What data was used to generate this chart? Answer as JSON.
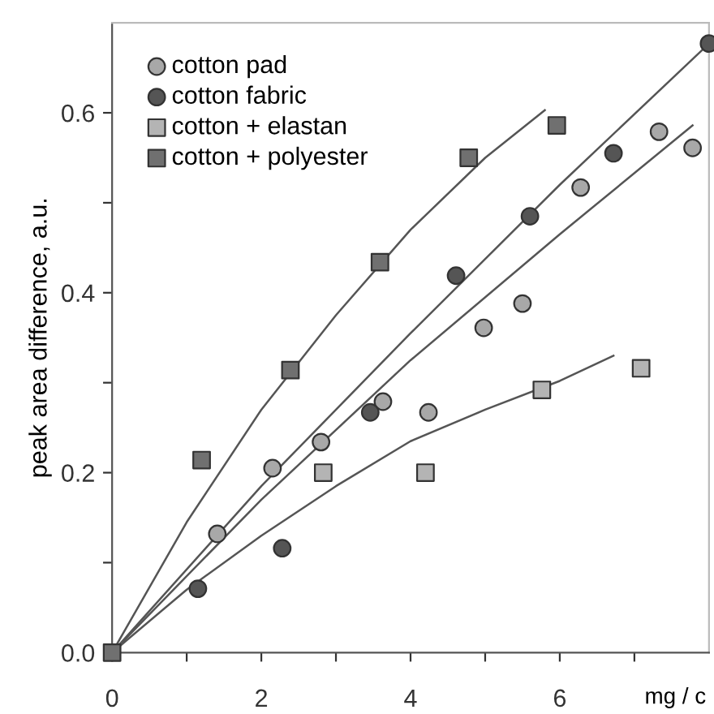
{
  "chart_data": {
    "type": "scatter",
    "ylabel": "peak area difference, a.u.",
    "xlabel": "mg / c",
    "xlim": [
      0,
      8
    ],
    "ylim": [
      0,
      0.7
    ],
    "xticks": [
      0,
      {
        "value": 1,
        "label": null
      },
      2,
      {
        "value": 3,
        "label": null
      },
      4,
      {
        "value": 5,
        "label": null
      },
      6,
      {
        "value": 7,
        "label": null
      }
    ],
    "yticks": [
      {
        "value": 0,
        "label": "0.0"
      },
      {
        "value": 0.1,
        "label": null
      },
      {
        "value": 0.2,
        "label": "0.2"
      },
      {
        "value": 0.3,
        "label": null
      },
      {
        "value": 0.4,
        "label": "0.4"
      },
      {
        "value": 0.5,
        "label": null
      },
      {
        "value": 0.6,
        "label": "0.6"
      }
    ],
    "legend": "top left",
    "grid": false,
    "series": [
      {
        "type": "line",
        "color": "#555555",
        "marker": "none",
        "line_style": "solid",
        "x": [
          0,
          1,
          2,
          3,
          4,
          5,
          5.8
        ],
        "values": [
          0,
          0.145,
          0.27,
          0.375,
          0.47,
          0.55,
          0.603
        ]
      },
      {
        "type": "line",
        "color": "#555555",
        "marker": "none",
        "line_style": "solid",
        "x": [
          0,
          2,
          4,
          6,
          8
        ],
        "values": [
          0,
          0.185,
          0.355,
          0.52,
          0.677
        ]
      },
      {
        "type": "line",
        "color": "#555555",
        "marker": "none",
        "line_style": "solid",
        "x": [
          0,
          2,
          4,
          6,
          7.78
        ],
        "values": [
          0,
          0.17,
          0.325,
          0.465,
          0.586
        ]
      },
      {
        "type": "line",
        "color": "#555555",
        "marker": "none",
        "line_style": "solid",
        "x": [
          0,
          1,
          2,
          3,
          4,
          5,
          6,
          6.72
        ],
        "values": [
          0,
          0.07,
          0.13,
          0.185,
          0.235,
          0.27,
          0.302,
          0.33
        ]
      },
      {
        "name": "cotton pad",
        "color": "#a8a8a8",
        "marker": "circle",
        "x": [
          1.41,
          2.15,
          2.8,
          3.63,
          4.24,
          4.98,
          5.5,
          6.28,
          7.33,
          7.78
        ],
        "values": [
          0.132,
          0.205,
          0.234,
          0.279,
          0.267,
          0.361,
          0.388,
          0.517,
          0.579,
          0.561
        ]
      },
      {
        "name": "cotton fabric",
        "color": "#555555",
        "marker": "circle",
        "x": [
          1.15,
          2.28,
          3.46,
          4.61,
          5.6,
          6.72,
          8.0
        ],
        "values": [
          0.071,
          0.116,
          0.267,
          0.419,
          0.485,
          0.555,
          0.677
        ]
      },
      {
        "name": "cotton + elastan",
        "color": "#b4b4b4",
        "marker": "square",
        "x": [
          2.83,
          4.2,
          5.76,
          7.09
        ],
        "values": [
          0.2,
          0.2,
          0.292,
          0.316
        ]
      },
      {
        "name": "cotton + polyester",
        "color": "#707070",
        "marker": "square",
        "x": [
          0,
          1.2,
          2.39,
          3.59,
          4.78,
          5.96
        ],
        "values": [
          0,
          0.214,
          0.314,
          0.434,
          0.55,
          0.586
        ]
      }
    ]
  }
}
